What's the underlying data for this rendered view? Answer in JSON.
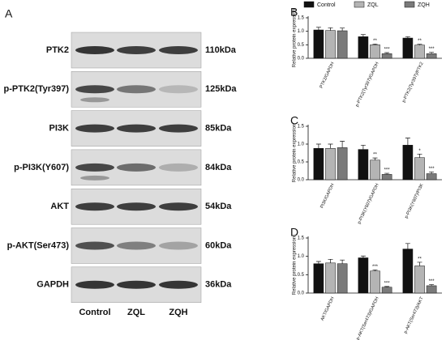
{
  "panel_a": {
    "label": "A",
    "rows": [
      {
        "protein": "PTK2",
        "size": "110kDa"
      },
      {
        "protein": "p-PTK2(Tyr397)",
        "size": "125kDa"
      },
      {
        "protein": "PI3K",
        "size": "85kDa"
      },
      {
        "protein": "p-PI3K(Y607)",
        "size": "84kDa"
      },
      {
        "protein": "AKT",
        "size": "54kDa"
      },
      {
        "protein": "p-AKT(Ser473)",
        "size": "60kDa"
      },
      {
        "protein": "GAPDH",
        "size": "36kDa"
      }
    ],
    "lanes": [
      "Control",
      "ZQL",
      "ZQH"
    ]
  },
  "chart_data": [
    {
      "type": "bar",
      "label": "B",
      "ylabel": "Relative protein expression",
      "categories": [
        "PTK2/GAPDH",
        "p-PTK2(Tyr397)/GAPDH",
        "p-PTK2(Tyr397)/PTK2"
      ],
      "series": [
        {
          "name": "Control",
          "color": "#111111",
          "values": [
            1.05,
            0.8,
            0.75
          ],
          "errors": [
            0.1,
            0.08,
            0.05
          ],
          "sig": [
            null,
            null,
            null
          ]
        },
        {
          "name": "ZQL",
          "color": "#b4b4b4",
          "values": [
            1.03,
            0.5,
            0.49
          ],
          "errors": [
            0.1,
            0.03,
            0.03
          ],
          "sig": [
            null,
            "**",
            "**"
          ]
        },
        {
          "name": "ZQH",
          "color": "#7a7a7a",
          "values": [
            1.02,
            0.17,
            0.17
          ],
          "errors": [
            0.1,
            0.04,
            0.05
          ],
          "sig": [
            null,
            "***",
            "***"
          ]
        }
      ],
      "ylim": [
        0,
        1.5
      ],
      "yticks": [
        {
          "value": 0,
          "label": "0.0"
        },
        0.5,
        {
          "value": 1,
          "label": "1.0"
        },
        1.5
      ]
    },
    {
      "type": "bar",
      "label": "C",
      "ylabel": "Relative protein expression",
      "categories": [
        "PI3K/GAPDH",
        "p-PI3K(Y607)/GAPDH",
        "p-PI3K(Y607)/PI3K"
      ],
      "series": [
        {
          "color": "#111111",
          "values": [
            0.88,
            0.85,
            0.97
          ],
          "errors": [
            0.12,
            0.12,
            0.2
          ],
          "sig": [
            null,
            null,
            null
          ]
        },
        {
          "color": "#b4b4b4",
          "values": [
            0.88,
            0.55,
            0.62
          ],
          "errors": [
            0.12,
            0.06,
            0.1
          ],
          "sig": [
            null,
            "**",
            "*"
          ]
        },
        {
          "color": "#7a7a7a",
          "values": [
            0.9,
            0.15,
            0.17
          ],
          "errors": [
            0.18,
            0.03,
            0.05
          ],
          "sig": [
            null,
            "***",
            "***"
          ]
        }
      ],
      "ylim": [
        0,
        1.5
      ],
      "yticks": [
        {
          "value": 0,
          "label": "0.0"
        },
        0.5,
        {
          "value": 1,
          "label": "1.0"
        },
        1.5
      ]
    },
    {
      "type": "bar",
      "label": "D",
      "ylabel": "Relative protein expression",
      "categories": [
        "AKT/GAPDH",
        "p-AKT(Ser473)/GAPDH",
        "p-AKT(Ser473)/AKT"
      ],
      "series": [
        {
          "color": "#111111",
          "values": [
            0.8,
            0.96,
            1.2
          ],
          "errors": [
            0.06,
            0.05,
            0.15
          ],
          "sig": [
            null,
            null,
            null
          ]
        },
        {
          "color": "#b4b4b4",
          "values": [
            0.82,
            0.6,
            0.74
          ],
          "errors": [
            0.1,
            0.03,
            0.1
          ],
          "sig": [
            null,
            "***",
            "**"
          ]
        },
        {
          "color": "#7a7a7a",
          "values": [
            0.8,
            0.16,
            0.2
          ],
          "errors": [
            0.1,
            0.02,
            0.03
          ],
          "sig": [
            null,
            "***",
            "***"
          ]
        }
      ],
      "ylim": [
        0,
        1.5
      ],
      "yticks": [
        {
          "value": 0,
          "label": "0.0"
        },
        0.5,
        {
          "value": 1,
          "label": "1.0"
        },
        1.5
      ]
    }
  ]
}
